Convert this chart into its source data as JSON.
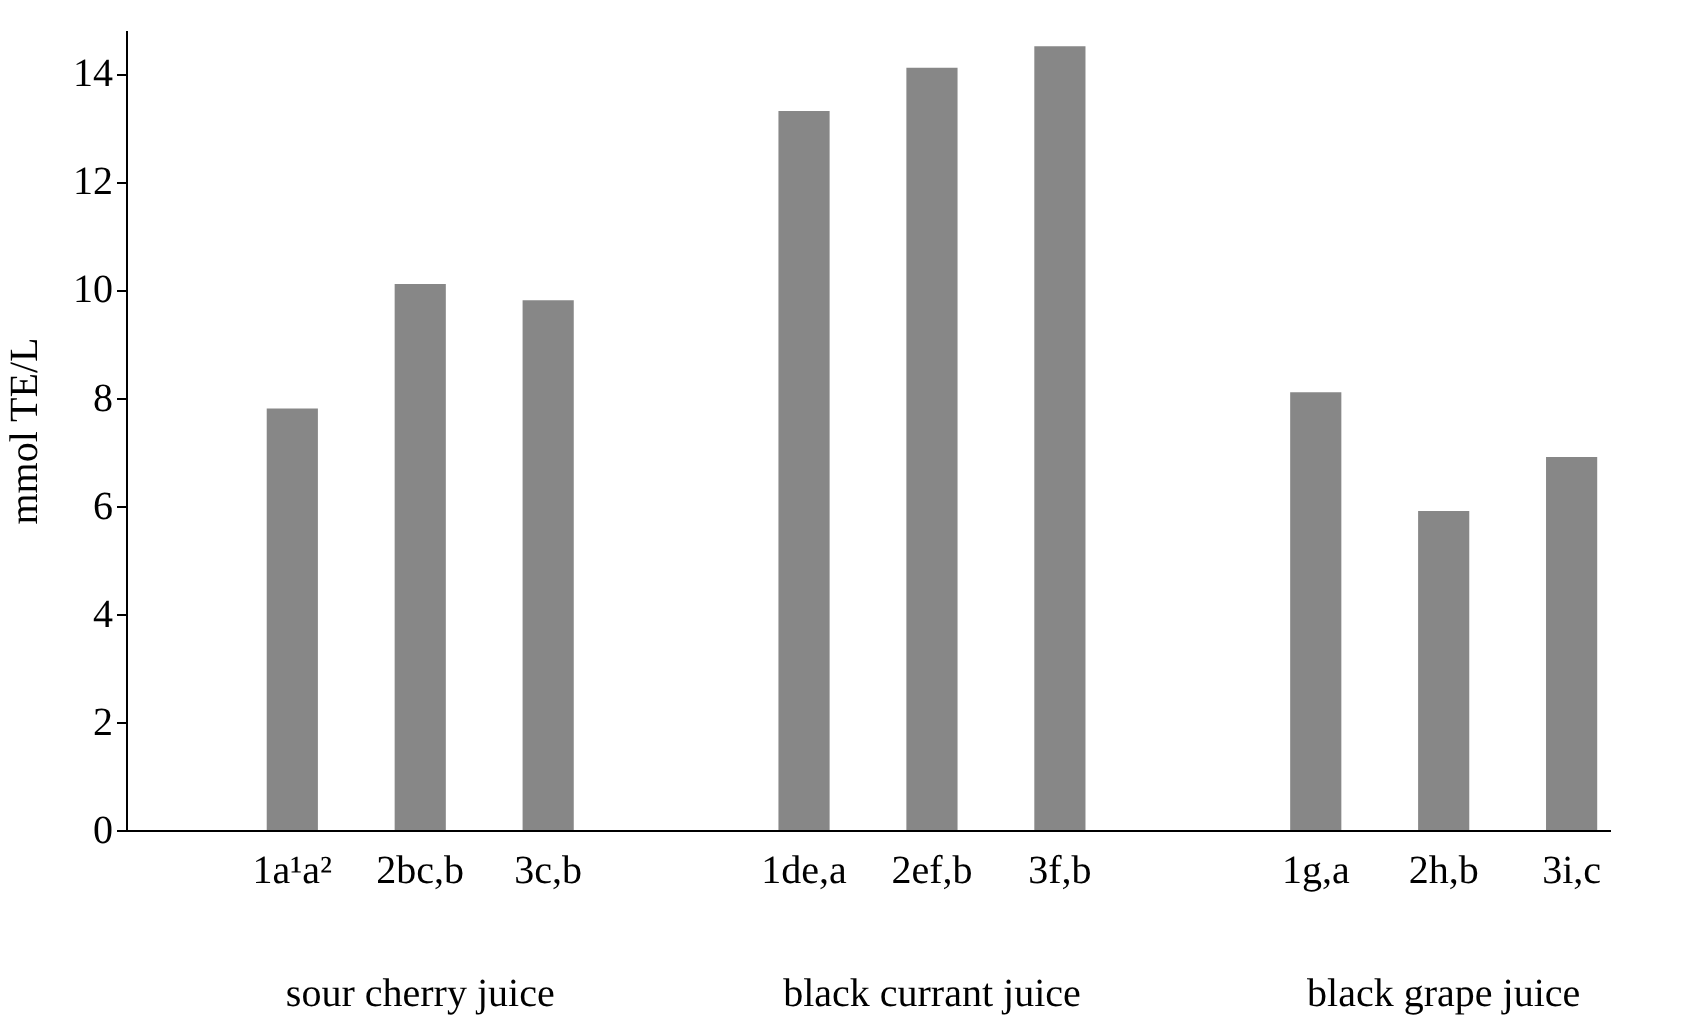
{
  "chart_data": {
    "type": "bar",
    "ylabel": "mmol TE/L",
    "categories": [
      null,
      "1a¹a²",
      "2bc,b",
      "3c,b",
      null,
      "1de,a",
      "2ef,b",
      "3f,b",
      null,
      "1g,a",
      "2h,b",
      "3i,c"
    ],
    "values": [
      null,
      7.8,
      10.1,
      9.8,
      null,
      13.3,
      14.1,
      14.5,
      null,
      8.1,
      5.9,
      6.9
    ],
    "color": "#878787",
    "ylim": [
      0,
      14.8
    ],
    "yticks": [
      0,
      2,
      4,
      6,
      8,
      10,
      12,
      14
    ],
    "grid": false,
    "annotations": [
      "sour cherry juice",
      "black currant juice",
      "black grape juice"
    ]
  }
}
